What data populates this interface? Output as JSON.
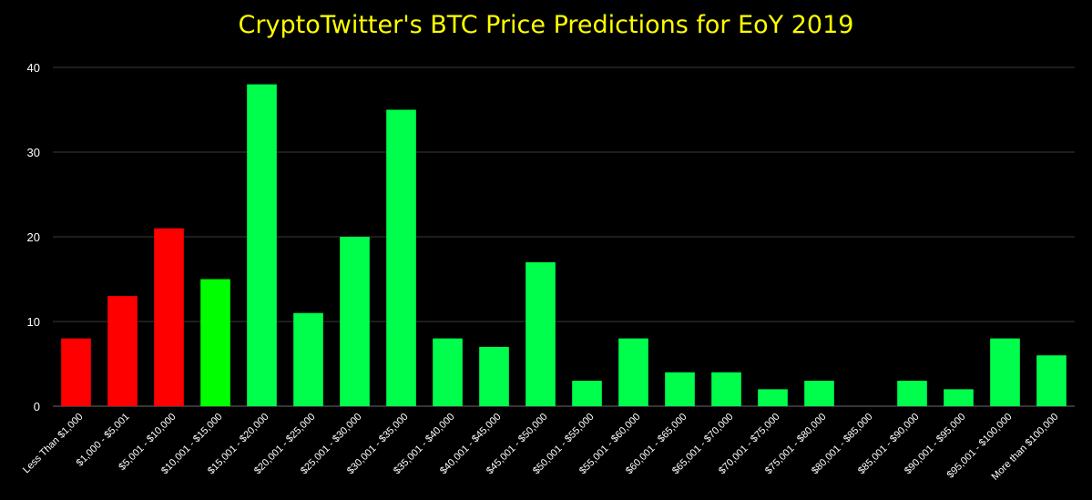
{
  "chart_data": {
    "type": "bar",
    "title": "CryptoTwitter's BTC Price Predictions for EoY 2019",
    "xlabel": "",
    "ylabel": "",
    "ylim": [
      0,
      40
    ],
    "yticks": [
      "0",
      "10",
      "20",
      "30",
      "40"
    ],
    "grid": "horizontal",
    "legend": "none",
    "categories": [
      "Less Than $1,000",
      "$1,000 - $5,001",
      "$5,001 - $10,000",
      "$10,001 - $15,000",
      "$15,001 - $20,000",
      "$20,001 - $25,000",
      "$25,001 - $30,000",
      "$30,001 - $35,000",
      "$35,001 - $40,000",
      "$40,001 - $45,000",
      "$45,001 - $50,000",
      "$50,001 - $55,000",
      "$55,001 - $60,000",
      "$60,001 - $65,000",
      "$65,001 - $70,000",
      "$70,001 - $75,000",
      "$75,001 - $80,000",
      "$80,001 - $85,000",
      "$85,001 - $90,000",
      "$90,001 - $95,000",
      "$95,001 - $100,000",
      "More than $100,000"
    ],
    "values": [
      8,
      13,
      21,
      15,
      38,
      11,
      20,
      35,
      8,
      7,
      17,
      3,
      8,
      4,
      4,
      2,
      3,
      0,
      3,
      2,
      8,
      6
    ],
    "bar_colors": [
      "#ff0000",
      "#ff0000",
      "#ff0000",
      "#00ff00",
      "#00ff4c",
      "#00ff4c",
      "#00ff4c",
      "#00ff4c",
      "#00ff4c",
      "#00ff4c",
      "#00ff4c",
      "#00ff4c",
      "#00ff4c",
      "#00ff4c",
      "#00ff4c",
      "#00ff4c",
      "#00ff4c",
      "#00ff4c",
      "#00ff4c",
      "#00ff4c",
      "#00ff4c",
      "#00ff4c"
    ],
    "colors": {
      "background": "#000000",
      "title": "#ffff00",
      "text": "#ffffff",
      "grid": "#3a3a3a"
    }
  }
}
